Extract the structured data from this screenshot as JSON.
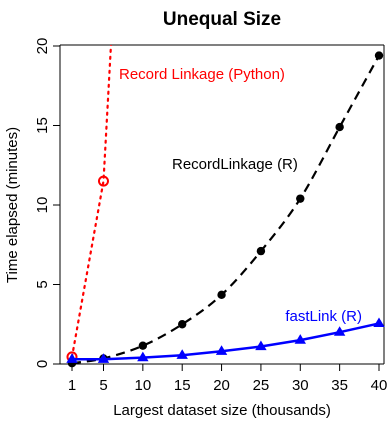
{
  "chart_data": {
    "type": "line",
    "title": "Unequal Size",
    "xlabel": "Largest dataset size (thousands)",
    "ylabel": "Time elapsed (minutes)",
    "xlim": [
      1,
      40
    ],
    "ylim": [
      0,
      20
    ],
    "xticks": [
      1,
      5,
      10,
      15,
      20,
      25,
      30,
      35,
      40
    ],
    "yticks": [
      0,
      5,
      10,
      15,
      20
    ],
    "grid": false,
    "legend": "none",
    "series": [
      {
        "name": "Record Linkage (Python)",
        "color": "#ff0000",
        "line": "dotted",
        "marker": "open-circle",
        "points": [
          {
            "x": 1,
            "y": 0.45
          },
          {
            "x": 5,
            "y": 11.5
          }
        ],
        "fit_curve": [
          {
            "x": 1,
            "y": 0.45
          },
          {
            "x": 5,
            "y": 11.5
          },
          {
            "x": 6,
            "y": 20.5
          }
        ]
      },
      {
        "name": "RecordLinkage (R)",
        "color": "#000000",
        "line": "dashed",
        "marker": "filled-circle",
        "points": [
          {
            "x": 1,
            "y": 0.05
          },
          {
            "x": 5,
            "y": 0.35
          },
          {
            "x": 10,
            "y": 1.15
          },
          {
            "x": 15,
            "y": 2.5
          },
          {
            "x": 20,
            "y": 4.35
          },
          {
            "x": 25,
            "y": 7.1
          },
          {
            "x": 30,
            "y": 10.4
          },
          {
            "x": 35,
            "y": 14.9
          },
          {
            "x": 40,
            "y": 19.4
          }
        ]
      },
      {
        "name": "fastLink (R)",
        "color": "#0000ff",
        "line": "solid",
        "marker": "filled-triangle",
        "points": [
          {
            "x": 1,
            "y": 0.3
          },
          {
            "x": 5,
            "y": 0.3
          },
          {
            "x": 10,
            "y": 0.4
          },
          {
            "x": 15,
            "y": 0.55
          },
          {
            "x": 20,
            "y": 0.8
          },
          {
            "x": 25,
            "y": 1.1
          },
          {
            "x": 30,
            "y": 1.5
          },
          {
            "x": 35,
            "y": 2.0
          },
          {
            "x": 40,
            "y": 2.55
          }
        ]
      }
    ]
  }
}
